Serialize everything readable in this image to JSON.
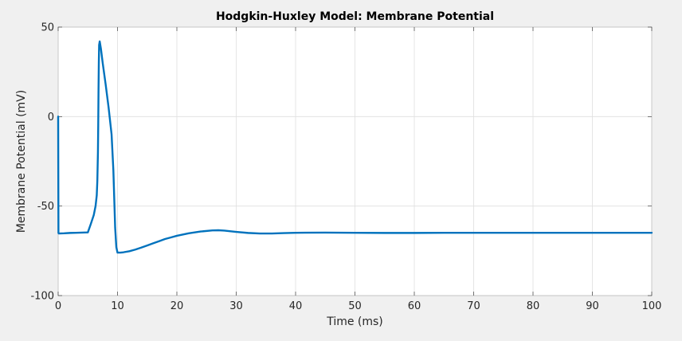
{
  "chart_data": {
    "type": "line",
    "title": "Hodgkin-Huxley Model: Membrane Potential",
    "xlabel": "Time (ms)",
    "ylabel": "Membrane Potential (mV)",
    "xlim": [
      0,
      100
    ],
    "ylim": [
      -100,
      50
    ],
    "xticks": [
      0,
      10,
      20,
      30,
      40,
      50,
      60,
      70,
      80,
      90,
      100
    ],
    "yticks": [
      -100,
      -50,
      0,
      50
    ],
    "grid": true,
    "line_color": "#0072bd",
    "series": [
      {
        "x": [
          0,
          0.05,
          0.1,
          1,
          2,
          3,
          4,
          5,
          5.5,
          6,
          6.3,
          6.5,
          6.6,
          6.7,
          6.75,
          6.8,
          6.85,
          6.9,
          7.0,
          7.2,
          7.5,
          8.0,
          8.5,
          9.0,
          9.3,
          9.6,
          9.8,
          10.0,
          10.5,
          11,
          12,
          13,
          14,
          15,
          16,
          17,
          18,
          19,
          20,
          22,
          24,
          26,
          27,
          28,
          30,
          32,
          34,
          36,
          38,
          40,
          45,
          50,
          55,
          60,
          65,
          70,
          75,
          80,
          85,
          90,
          95,
          100
        ],
        "y": [
          0,
          -65,
          -65.3,
          -65.2,
          -65.0,
          -64.9,
          -64.8,
          -64.7,
          -60,
          -55,
          -50,
          -44,
          -36,
          -20,
          -5,
          15,
          30,
          40,
          42,
          38,
          30,
          18,
          5,
          -10,
          -30,
          -62,
          -73,
          -76,
          -76,
          -75.8,
          -75.2,
          -74.3,
          -73.2,
          -72.0,
          -70.8,
          -69.6,
          -68.4,
          -67.5,
          -66.6,
          -65.2,
          -64.2,
          -63.6,
          -63.5,
          -63.7,
          -64.4,
          -65.0,
          -65.3,
          -65.3,
          -65.1,
          -64.9,
          -64.8,
          -64.9,
          -65.0,
          -65.0,
          -64.9,
          -64.9,
          -64.9,
          -64.9,
          -64.9,
          -64.9,
          -64.9,
          -64.9
        ]
      }
    ]
  }
}
